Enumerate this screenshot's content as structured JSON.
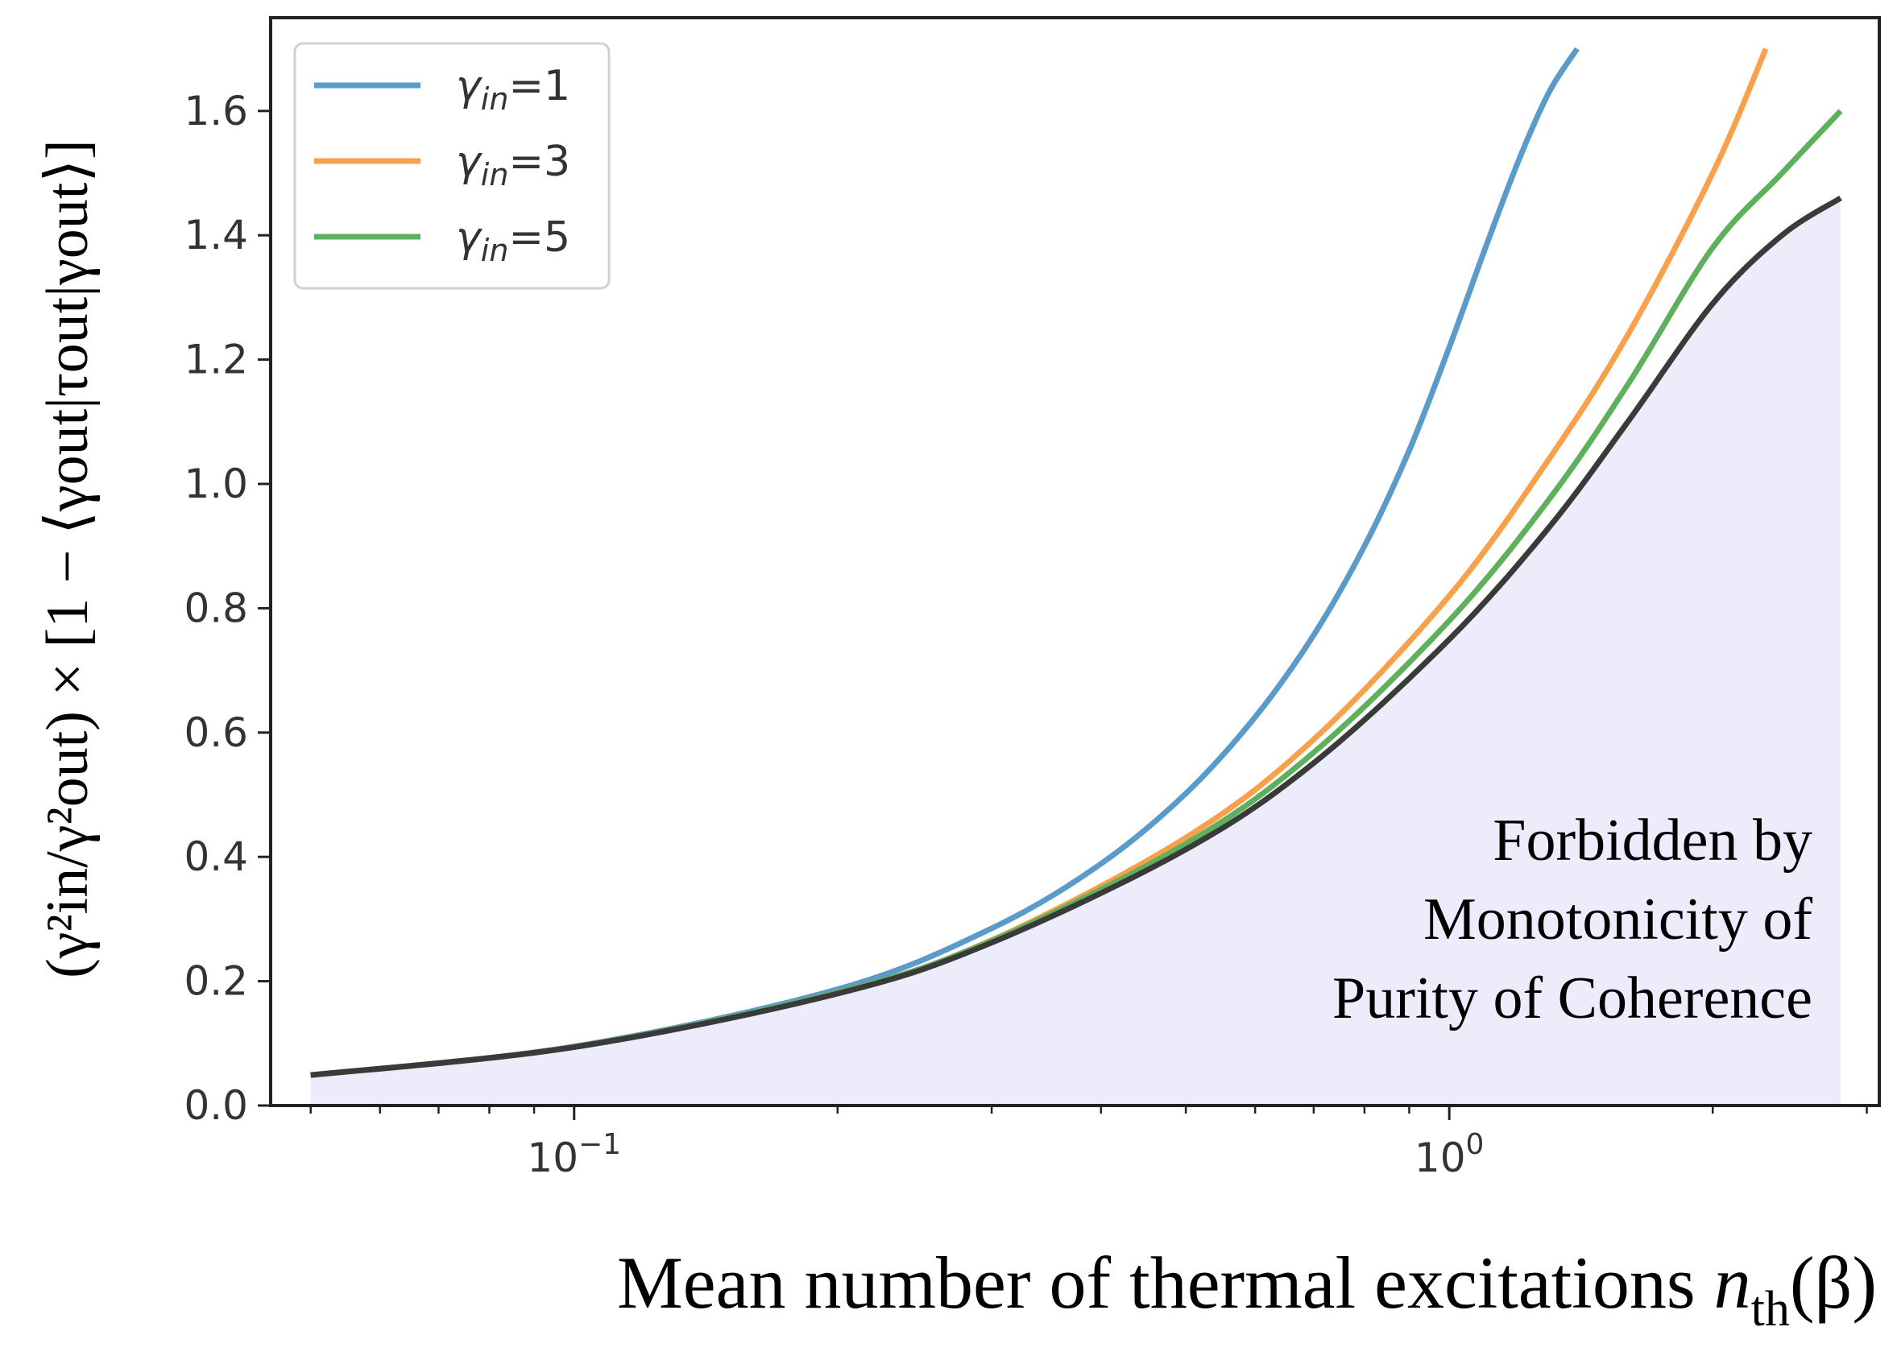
{
  "chart_data": {
    "type": "line",
    "x_scale": "log",
    "xlim": [
      0.045,
      3.1
    ],
    "ylim": [
      0,
      1.75
    ],
    "xlabel": "Mean number of thermal excitations nth(β)",
    "xlabel_main": "Mean number of thermal excitations ",
    "xlabel_var": "n",
    "xlabel_sub": "th",
    "xlabel_arg": "(β)",
    "ylabel": "(γin²/γout²) × [1 − ⟨γout|τout|γout⟩]",
    "ylabel_text": "(γ²in/γ²out) × [1 − ⟨γout|τout|γout⟩]",
    "x_ticks": [
      {
        "value": 0.1,
        "base": "10",
        "exp": "−1"
      },
      {
        "value": 1.0,
        "base": "10",
        "exp": "0"
      }
    ],
    "y_ticks": [
      "0.0",
      "0.2",
      "0.4",
      "0.6",
      "0.8",
      "1.0",
      "1.2",
      "1.4",
      "1.6"
    ],
    "y_tick_values": [
      0.0,
      0.2,
      0.4,
      0.6,
      0.8,
      1.0,
      1.2,
      1.4,
      1.6
    ],
    "series": [
      {
        "name": "γin=1",
        "greek": "γ",
        "sub": "in",
        "suffix": "=1",
        "color": "#5b9bc9",
        "x": [
          0.05,
          0.1,
          0.2,
          0.3,
          0.4,
          0.5,
          0.6,
          0.7,
          0.8,
          0.9,
          1.0,
          1.1,
          1.2,
          1.3,
          1.4
        ],
        "y": [
          0.049,
          0.095,
          0.187,
          0.285,
          0.389,
          0.502,
          0.625,
          0.757,
          0.9,
          1.054,
          1.22,
          1.38,
          1.52,
          1.63,
          1.7
        ]
      },
      {
        "name": "γin=3",
        "greek": "γ",
        "sub": "in",
        "suffix": "=3",
        "color": "#f9a04a",
        "x": [
          0.05,
          0.1,
          0.2,
          0.3,
          0.5,
          0.7,
          1.0,
          1.3,
          1.6,
          2.0,
          2.3
        ],
        "y": [
          0.049,
          0.094,
          0.182,
          0.266,
          0.431,
          0.589,
          0.82,
          1.04,
          1.24,
          1.5,
          1.7
        ]
      },
      {
        "name": "γin=5",
        "greek": "γ",
        "sub": "in",
        "suffix": "=5",
        "color": "#5fb05c",
        "x": [
          0.05,
          0.1,
          0.2,
          0.3,
          0.5,
          0.7,
          1.0,
          1.3,
          1.6,
          2.0,
          2.4,
          2.8
        ],
        "y": [
          0.049,
          0.094,
          0.182,
          0.265,
          0.421,
          0.568,
          0.78,
          0.975,
          1.16,
          1.38,
          1.5,
          1.6
        ]
      },
      {
        "name": "bound",
        "color": "#3a3a3a",
        "show_in_legend": false,
        "x": [
          0.05,
          0.1,
          0.2,
          0.3,
          0.5,
          0.7,
          1.0,
          1.3,
          1.6,
          2.0,
          2.4,
          2.8
        ],
        "y": [
          0.049,
          0.094,
          0.18,
          0.262,
          0.412,
          0.551,
          0.75,
          0.93,
          1.1,
          1.29,
          1.4,
          1.46
        ]
      }
    ],
    "shaded_region": {
      "below_series": "bound",
      "color": "#ececfb"
    },
    "annotation": [
      "Forbidden by",
      "Monotonicity of",
      "Purity of Coherence"
    ],
    "legend_location": "upper-left",
    "grid": false
  }
}
